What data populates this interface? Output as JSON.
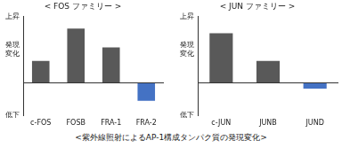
{
  "chart_data": [
    {
      "type": "bar",
      "title": "< FOS ファミリー >",
      "categories": [
        "c-FOS",
        "FOSB",
        "FRA-1",
        "FRA-2"
      ],
      "values": [
        0.66,
        1.64,
        1.07,
        -0.55
      ],
      "colors": [
        "#595959",
        "#595959",
        "#595959",
        "#4472c4"
      ],
      "ylim": [
        -1,
        2
      ],
      "yticks": [
        {
          "value": 2,
          "label": "上昇"
        },
        {
          "value": 1,
          "label": "発現変化"
        },
        {
          "value": -1,
          "label": "低下"
        }
      ],
      "grid": false
    },
    {
      "type": "bar",
      "title": "< JUN ファミリー >",
      "categories": [
        "c-JUN",
        "JUNB",
        "JUND"
      ],
      "values": [
        1.5,
        0.66,
        -0.18
      ],
      "colors": [
        "#595959",
        "#595959",
        "#4472c4"
      ],
      "ylim": [
        -1,
        2
      ],
      "yticks": [
        {
          "value": 2,
          "label": "上昇"
        },
        {
          "value": 1,
          "label": "発現変化"
        },
        {
          "value": -1,
          "label": "低下"
        }
      ],
      "grid": false
    }
  ],
  "caption": "<紫外線照射によるAP-1構成タンパク質の発現変化>"
}
